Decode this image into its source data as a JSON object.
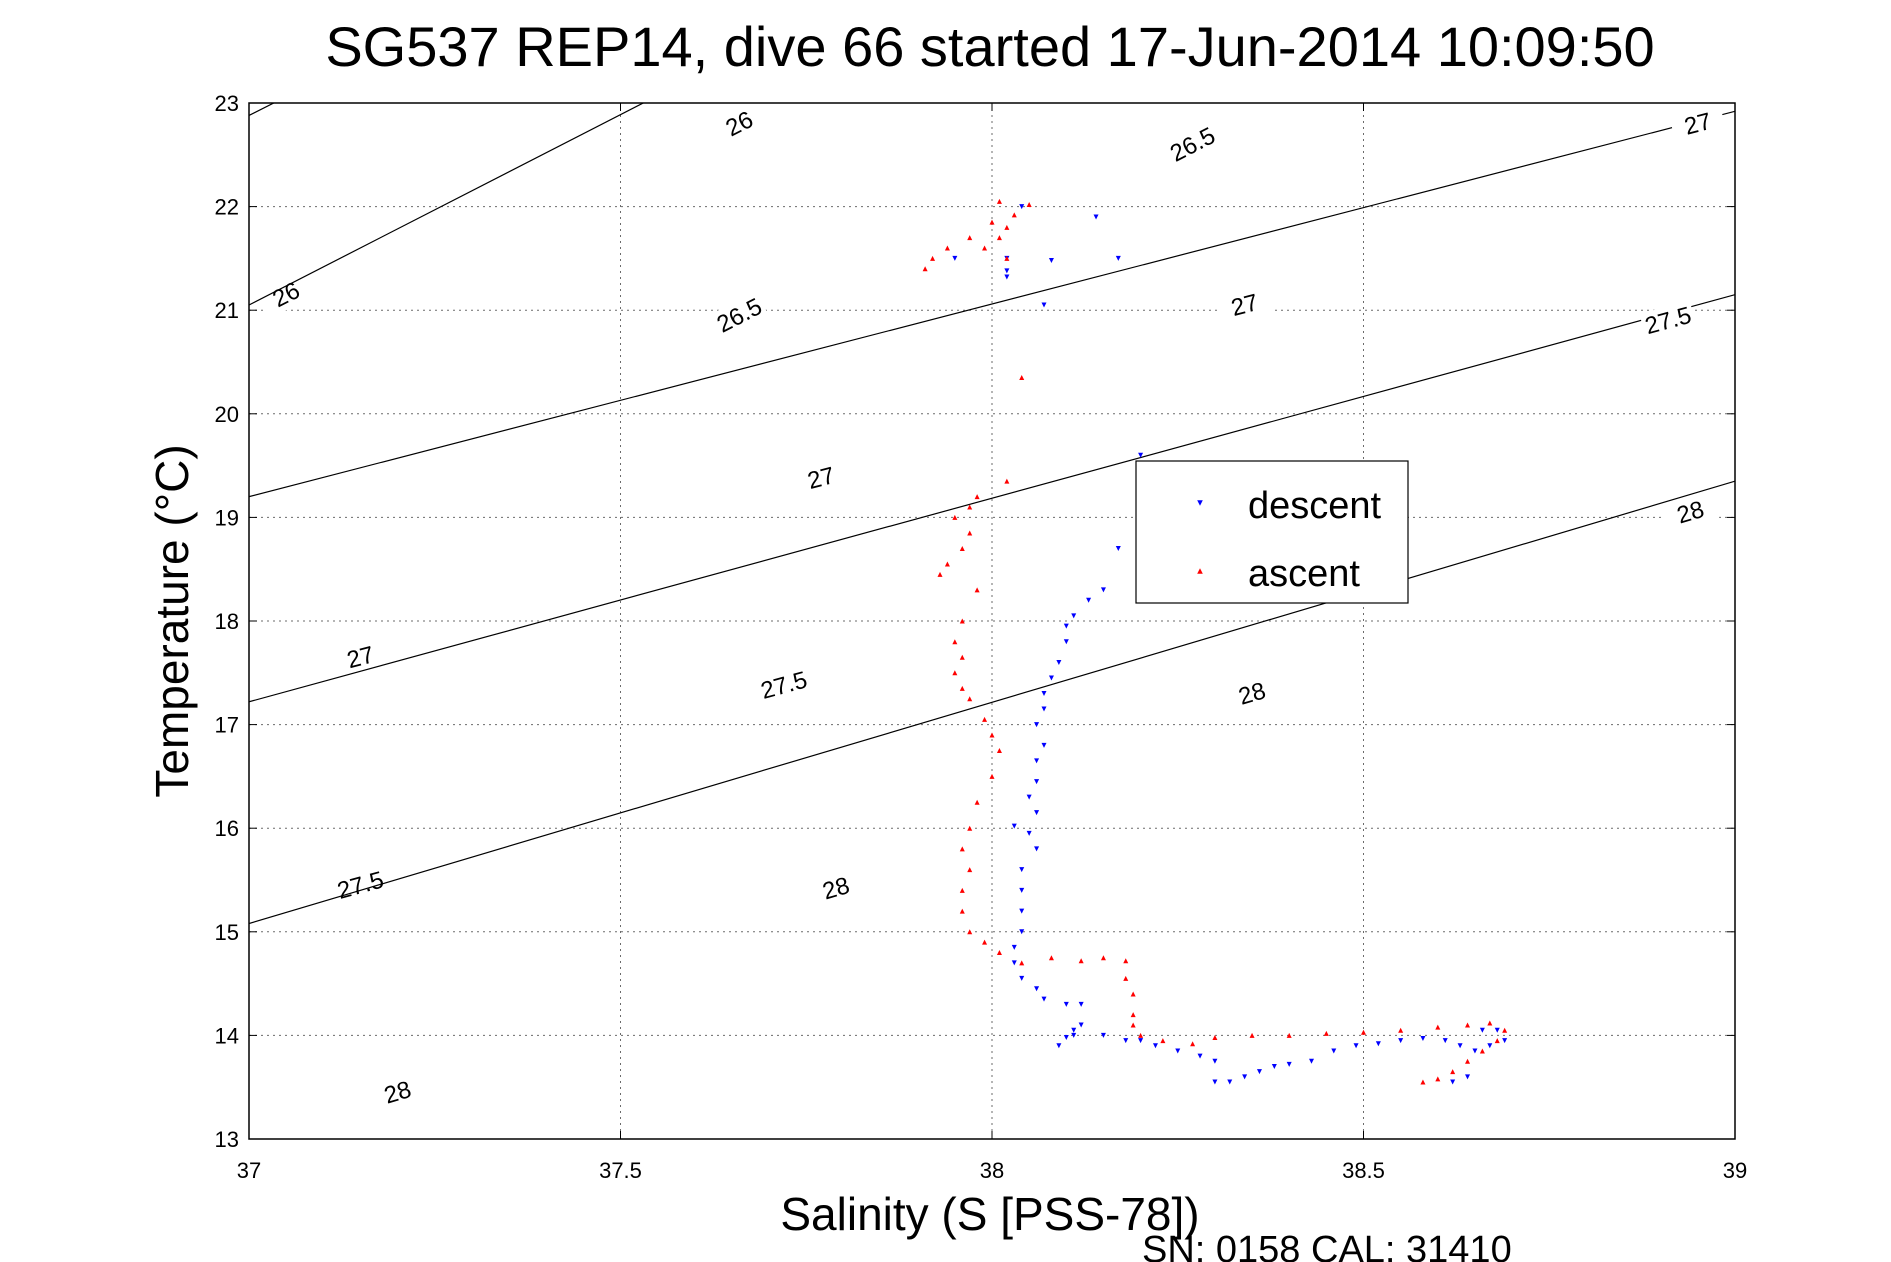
{
  "chart_data": {
    "type": "scatter",
    "title": "SG537 REP14, dive 66 started 17-Jun-2014 10:09:50",
    "xlabel": "Salinity (S [PSS-78])",
    "ylabel": "Temperature (°C)",
    "xlim": [
      37,
      39
    ],
    "ylim": [
      13,
      23
    ],
    "xticks": [
      "37",
      "37.5",
      "38",
      "38.5",
      "39"
    ],
    "yticks": [
      "13",
      "14",
      "15",
      "16",
      "17",
      "18",
      "19",
      "20",
      "21",
      "22",
      "23"
    ],
    "grid": true,
    "legend_position": "right-center",
    "contours": [
      {
        "label": "26",
        "points": [
          [
            37,
            22.88
          ],
          [
            39,
            30.1
          ]
        ],
        "label_positions": [
          [
            37.05,
            21.15
          ],
          [
            37.66,
            22.8
          ]
        ]
      },
      {
        "label": "26.5",
        "points": [
          [
            37,
            21.05
          ],
          [
            39,
            28.4
          ]
        ],
        "label_positions": [
          [
            37.66,
            20.95
          ],
          [
            38.27,
            22.6
          ]
        ]
      },
      {
        "label": "27",
        "points": [
          [
            37,
            19.2
          ],
          [
            39,
            22.92
          ]
        ],
        "label_positions": [
          [
            37.15,
            17.65
          ],
          [
            37.77,
            19.38
          ],
          [
            38.34,
            21.05
          ],
          [
            38.95,
            22.8
          ]
        ]
      },
      {
        "label": "27.5",
        "points": [
          [
            37,
            17.22
          ],
          [
            39,
            21.15
          ]
        ],
        "label_positions": [
          [
            37.15,
            15.45
          ],
          [
            37.72,
            17.38
          ],
          [
            38.91,
            20.9
          ]
        ]
      },
      {
        "label": "28",
        "points": [
          [
            37,
            15.08
          ],
          [
            39,
            19.35
          ]
        ],
        "label_positions": [
          [
            37.2,
            13.45
          ],
          [
            37.79,
            15.42
          ],
          [
            38.35,
            17.3
          ],
          [
            38.94,
            19.05
          ]
        ]
      }
    ],
    "series": [
      {
        "name": "descent",
        "color": "#0000ff",
        "marker": "triangle-down",
        "points": [
          [
            38.04,
            22.0
          ],
          [
            38.14,
            21.9
          ],
          [
            37.95,
            21.5
          ],
          [
            38.02,
            21.5
          ],
          [
            38.17,
            21.5
          ],
          [
            38.08,
            21.48
          ],
          [
            38.02,
            21.38
          ],
          [
            38.02,
            21.32
          ],
          [
            38.07,
            21.05
          ],
          [
            38.2,
            19.6
          ],
          [
            38.17,
            18.7
          ],
          [
            38.15,
            18.3
          ],
          [
            38.13,
            18.2
          ],
          [
            38.11,
            18.05
          ],
          [
            38.1,
            17.95
          ],
          [
            38.1,
            17.8
          ],
          [
            38.09,
            17.6
          ],
          [
            38.08,
            17.45
          ],
          [
            38.07,
            17.3
          ],
          [
            38.07,
            17.15
          ],
          [
            38.06,
            17.0
          ],
          [
            38.07,
            16.8
          ],
          [
            38.06,
            16.65
          ],
          [
            38.06,
            16.45
          ],
          [
            38.05,
            16.3
          ],
          [
            38.06,
            16.15
          ],
          [
            38.03,
            16.02
          ],
          [
            38.05,
            15.95
          ],
          [
            38.06,
            15.8
          ],
          [
            38.04,
            15.6
          ],
          [
            38.04,
            15.4
          ],
          [
            38.04,
            15.2
          ],
          [
            38.04,
            15.0
          ],
          [
            38.03,
            14.85
          ],
          [
            38.03,
            14.7
          ],
          [
            38.04,
            14.55
          ],
          [
            38.06,
            14.45
          ],
          [
            38.07,
            14.35
          ],
          [
            38.1,
            14.3
          ],
          [
            38.12,
            14.3
          ],
          [
            38.12,
            14.1
          ],
          [
            38.11,
            14.05
          ],
          [
            38.1,
            13.98
          ],
          [
            38.09,
            13.9
          ],
          [
            38.11,
            14.0
          ],
          [
            38.15,
            14.0
          ],
          [
            38.18,
            13.95
          ],
          [
            38.2,
            13.95
          ],
          [
            38.22,
            13.9
          ],
          [
            38.25,
            13.85
          ],
          [
            38.28,
            13.8
          ],
          [
            38.3,
            13.75
          ],
          [
            38.3,
            13.55
          ],
          [
            38.32,
            13.55
          ],
          [
            38.34,
            13.6
          ],
          [
            38.36,
            13.65
          ],
          [
            38.38,
            13.7
          ],
          [
            38.4,
            13.72
          ],
          [
            38.43,
            13.75
          ],
          [
            38.46,
            13.85
          ],
          [
            38.49,
            13.9
          ],
          [
            38.52,
            13.92
          ],
          [
            38.55,
            13.95
          ],
          [
            38.58,
            13.97
          ],
          [
            38.61,
            13.95
          ],
          [
            38.63,
            13.9
          ],
          [
            38.65,
            13.85
          ],
          [
            38.67,
            13.9
          ],
          [
            38.69,
            13.95
          ],
          [
            38.68,
            14.05
          ],
          [
            38.66,
            14.05
          ],
          [
            38.64,
            13.6
          ],
          [
            38.62,
            13.55
          ]
        ]
      },
      {
        "name": "ascent",
        "color": "#ff0000",
        "marker": "triangle-up",
        "points": [
          [
            38.01,
            22.05
          ],
          [
            38.05,
            22.02
          ],
          [
            38.03,
            21.92
          ],
          [
            38.0,
            21.85
          ],
          [
            38.02,
            21.8
          ],
          [
            38.01,
            21.7
          ],
          [
            37.99,
            21.6
          ],
          [
            37.97,
            21.7
          ],
          [
            37.94,
            21.6
          ],
          [
            37.92,
            21.5
          ],
          [
            37.91,
            21.4
          ],
          [
            38.02,
            21.5
          ],
          [
            38.04,
            20.35
          ],
          [
            38.02,
            19.35
          ],
          [
            37.98,
            19.2
          ],
          [
            37.97,
            19.1
          ],
          [
            37.95,
            19.0
          ],
          [
            37.97,
            18.85
          ],
          [
            37.96,
            18.7
          ],
          [
            37.94,
            18.55
          ],
          [
            37.93,
            18.45
          ],
          [
            37.98,
            18.3
          ],
          [
            37.96,
            18.0
          ],
          [
            37.95,
            17.8
          ],
          [
            37.96,
            17.65
          ],
          [
            37.95,
            17.5
          ],
          [
            37.96,
            17.35
          ],
          [
            37.97,
            17.25
          ],
          [
            37.99,
            17.05
          ],
          [
            38.0,
            16.9
          ],
          [
            38.01,
            16.75
          ],
          [
            38.0,
            16.5
          ],
          [
            37.98,
            16.25
          ],
          [
            37.97,
            16.0
          ],
          [
            37.96,
            15.8
          ],
          [
            37.97,
            15.6
          ],
          [
            37.96,
            15.4
          ],
          [
            37.96,
            15.2
          ],
          [
            37.97,
            15.0
          ],
          [
            37.99,
            14.9
          ],
          [
            38.01,
            14.8
          ],
          [
            38.04,
            14.7
          ],
          [
            38.08,
            14.75
          ],
          [
            38.12,
            14.72
          ],
          [
            38.15,
            14.75
          ],
          [
            38.18,
            14.72
          ],
          [
            38.18,
            14.55
          ],
          [
            38.19,
            14.4
          ],
          [
            38.19,
            14.2
          ],
          [
            38.19,
            14.1
          ],
          [
            38.2,
            14.0
          ],
          [
            38.23,
            13.95
          ],
          [
            38.27,
            13.92
          ],
          [
            38.3,
            13.98
          ],
          [
            38.35,
            14.0
          ],
          [
            38.4,
            14.0
          ],
          [
            38.45,
            14.02
          ],
          [
            38.5,
            14.03
          ],
          [
            38.55,
            14.05
          ],
          [
            38.6,
            14.08
          ],
          [
            38.64,
            14.1
          ],
          [
            38.67,
            14.12
          ],
          [
            38.69,
            14.05
          ],
          [
            38.68,
            13.95
          ],
          [
            38.66,
            13.85
          ],
          [
            38.64,
            13.75
          ],
          [
            38.62,
            13.65
          ],
          [
            38.6,
            13.58
          ],
          [
            38.58,
            13.55
          ]
        ]
      }
    ],
    "annotations": [
      "SN: 0158  CAL: 31410"
    ]
  }
}
